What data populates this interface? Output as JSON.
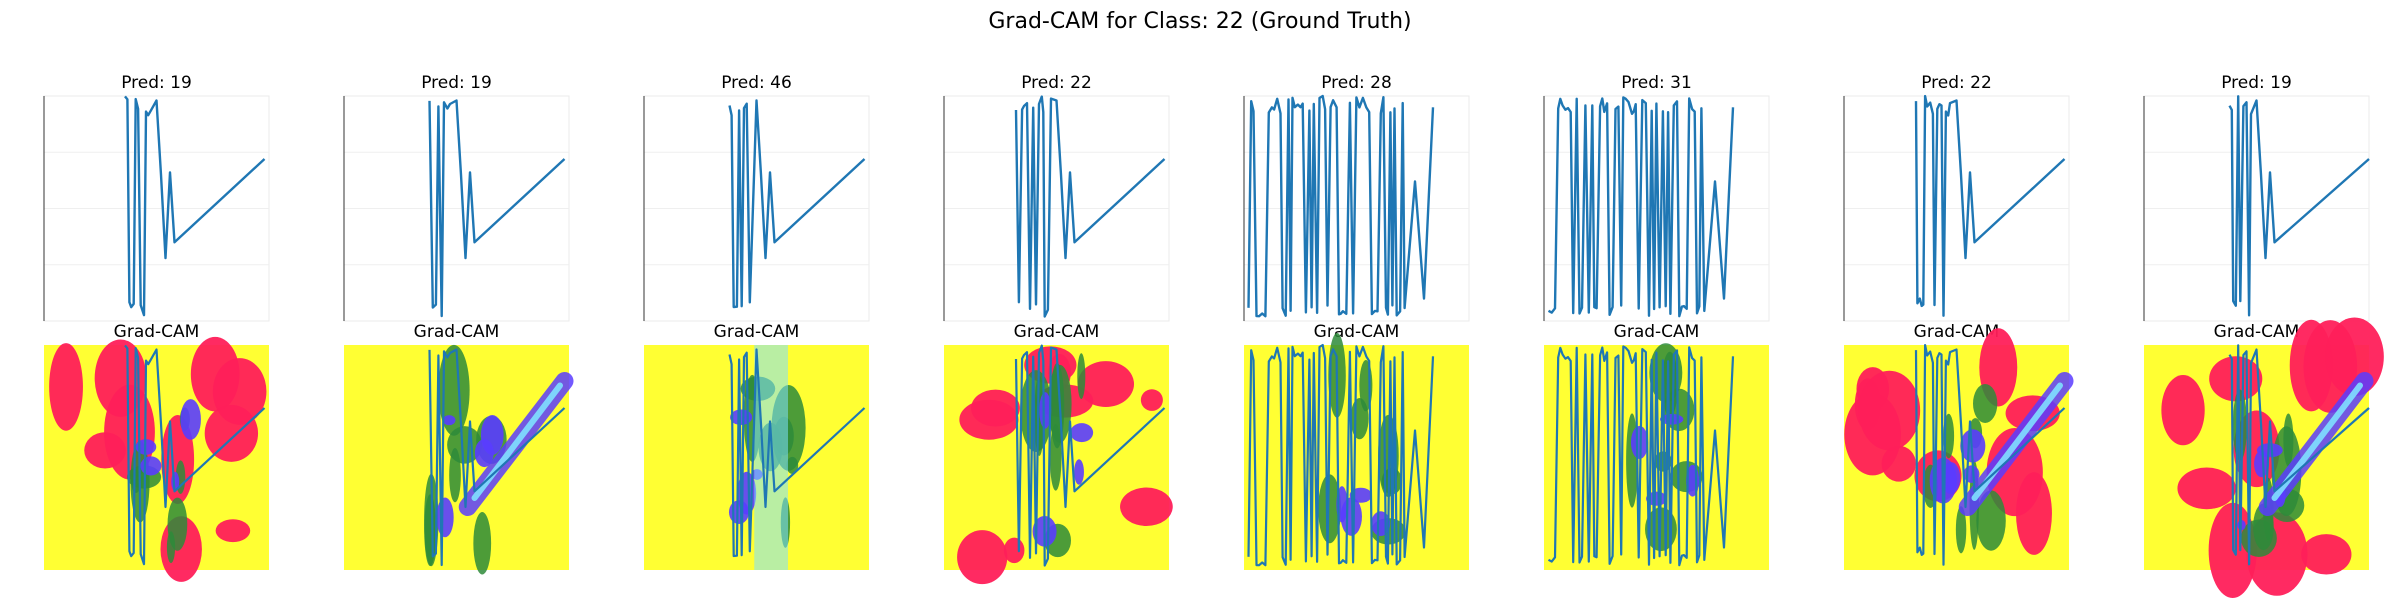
{
  "figure": {
    "title": "Grad-CAM for Class: 22 (Ground Truth)"
  },
  "chart_data": [
    {
      "type": "line",
      "title": "Pred: 19",
      "xlabel": "",
      "ylabel": "",
      "grid": true,
      "description": "Input signal plot with dense vertical spikes and a diagonal line rising to the right.",
      "series": [
        {
          "color": "#1f77b4"
        }
      ]
    },
    {
      "type": "line",
      "title": "Pred: 19",
      "xlabel": "",
      "ylabel": "",
      "grid": true,
      "series": [
        {
          "color": "#1f77b4"
        }
      ]
    },
    {
      "type": "line",
      "title": "Pred: 46",
      "xlabel": "",
      "ylabel": "",
      "grid": true,
      "series": [
        {
          "color": "#1f77b4"
        }
      ]
    },
    {
      "type": "line",
      "title": "Pred: 22",
      "xlabel": "",
      "ylabel": "",
      "grid": true,
      "series": [
        {
          "color": "#1f77b4"
        }
      ]
    },
    {
      "type": "line",
      "title": "Pred: 28",
      "xlabel": "",
      "ylabel": "",
      "grid": true,
      "series": [
        {
          "color": "#1f77b4"
        }
      ]
    },
    {
      "type": "line",
      "title": "Pred: 31",
      "xlabel": "",
      "ylabel": "",
      "grid": true,
      "series": [
        {
          "color": "#1f77b4"
        }
      ]
    },
    {
      "type": "line",
      "title": "Pred: 22",
      "xlabel": "",
      "ylabel": "",
      "grid": true,
      "series": [
        {
          "color": "#1f77b4"
        }
      ]
    },
    {
      "type": "line",
      "title": "Pred: 19",
      "xlabel": "",
      "ylabel": "",
      "grid": true,
      "series": [
        {
          "color": "#1f77b4"
        }
      ]
    },
    {
      "type": "heatmap",
      "title": "Grad-CAM",
      "overlay_line_color": "#1f77b4",
      "colors": [
        "#ffff33",
        "#ff1f5a",
        "#2e8b3a",
        "#5a3cff",
        "#7fe0ff"
      ]
    },
    {
      "type": "heatmap",
      "title": "Grad-CAM",
      "overlay_line_color": "#1f77b4",
      "colors": [
        "#ffff33",
        "#ff1f5a",
        "#2e8b3a",
        "#5a3cff",
        "#7fe0ff"
      ]
    },
    {
      "type": "heatmap",
      "title": "Grad-CAM",
      "overlay_line_color": "#1f77b4",
      "colors": [
        "#ffff33",
        "#ff1f5a",
        "#2e8b3a",
        "#5a3cff",
        "#7fe0ff"
      ]
    },
    {
      "type": "heatmap",
      "title": "Grad-CAM",
      "overlay_line_color": "#1f77b4",
      "colors": [
        "#ffff33",
        "#ff1f5a",
        "#2e8b3a",
        "#5a3cff",
        "#7fe0ff"
      ]
    },
    {
      "type": "heatmap",
      "title": "Grad-CAM",
      "overlay_line_color": "#1f77b4",
      "colors": [
        "#ffff33",
        "#ff1f5a",
        "#2e8b3a",
        "#5a3cff",
        "#7fe0ff"
      ]
    },
    {
      "type": "heatmap",
      "title": "Grad-CAM",
      "overlay_line_color": "#1f77b4",
      "colors": [
        "#ffff33",
        "#ff1f5a",
        "#2e8b3a",
        "#5a3cff",
        "#7fe0ff"
      ]
    },
    {
      "type": "heatmap",
      "title": "Grad-CAM",
      "overlay_line_color": "#1f77b4",
      "colors": [
        "#ffff33",
        "#ff1f5a",
        "#2e8b3a",
        "#5a3cff",
        "#7fe0ff"
      ]
    },
    {
      "type": "heatmap",
      "title": "Grad-CAM",
      "overlay_line_color": "#1f77b4",
      "colors": [
        "#ffff33",
        "#ff1f5a",
        "#2e8b3a",
        "#5a3cff",
        "#7fe0ff"
      ]
    }
  ]
}
